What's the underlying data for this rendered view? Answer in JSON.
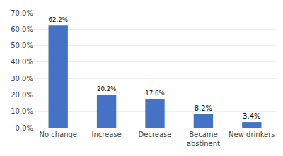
{
  "chart_data": {
    "type": "bar",
    "categories": [
      "No change",
      "Increase",
      "Decrease",
      "Became\nabstinent",
      "New drinkers"
    ],
    "values": [
      62.2,
      20.2,
      17.6,
      8.2,
      3.4
    ],
    "value_labels": [
      "62.2%",
      "20.2%",
      "17.6%",
      "8.2%",
      "3.4%"
    ],
    "data_labels": true,
    "color": "#4472c4",
    "ylim": [
      0,
      70
    ],
    "yticks": [
      {
        "value": 0,
        "label": "0.0%"
      },
      {
        "value": 10,
        "label": "10.0%"
      },
      {
        "value": 20,
        "label": "20.0%"
      },
      {
        "value": 30,
        "label": "30.0%"
      },
      {
        "value": 40,
        "label": "40.0%"
      },
      {
        "value": 50,
        "label": "50.0%"
      },
      {
        "value": 60,
        "label": "60.0%"
      },
      {
        "value": 70,
        "label": "70.0%"
      }
    ],
    "grid": true
  }
}
